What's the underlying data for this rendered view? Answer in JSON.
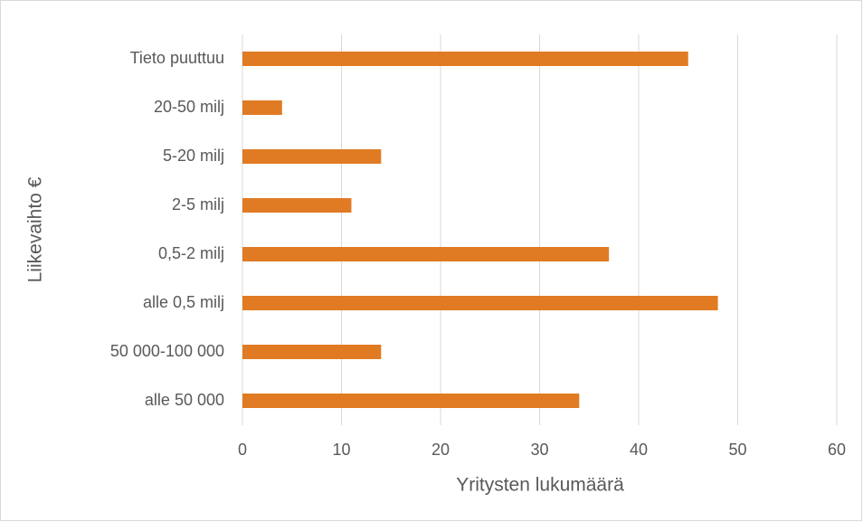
{
  "chart_data": {
    "type": "bar",
    "orientation": "horizontal",
    "xlabel": "Yritysten lukumäärä",
    "ylabel": "Liikevaihto €",
    "categories": [
      "Tieto puuttuu",
      "20-50 milj",
      "5-20 milj",
      "2-5 milj",
      "0,5-2 milj",
      "alle 0,5 milj",
      "50 000-100 000",
      "alle 50 000"
    ],
    "values": [
      45,
      4,
      14,
      11,
      37,
      48,
      14,
      34
    ],
    "color": "#e07b24",
    "xlim": [
      0,
      60
    ],
    "xticks": [
      0,
      10,
      20,
      30,
      40,
      50,
      60
    ],
    "grid": true
  }
}
